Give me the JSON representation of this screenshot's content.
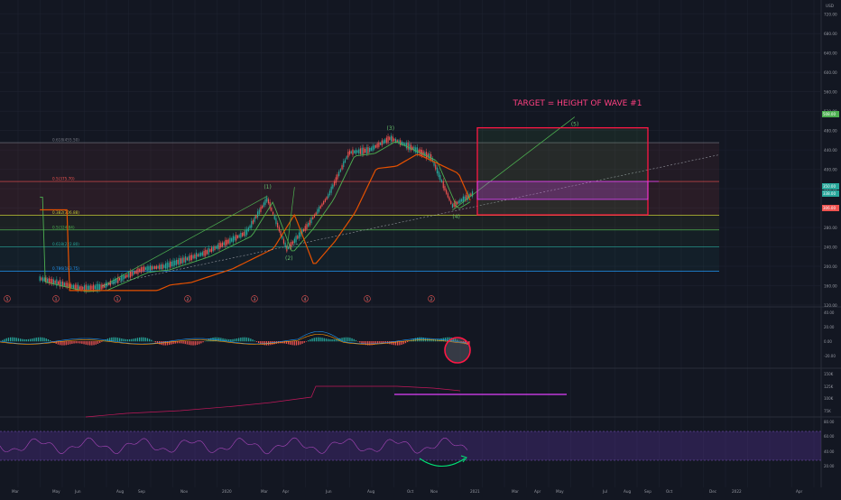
{
  "chart": {
    "annotation_title": "TARGET = HEIGHT OF WAVE #1",
    "colors": {
      "background": "#131722",
      "grid": "#1e2230",
      "price_up": "#26a69a",
      "price_down": "#ef5350",
      "ma_fast": "#4caf50",
      "ma_slow": "#e65100",
      "fib_red": "#ef5350",
      "fib_green": "#4caf50",
      "fib_blue": "#2196f3",
      "target_box": "#ff1744",
      "magenta": "#e040fb",
      "rsi_band": "#6a1b9a",
      "wave_label": "#66bb6a"
    },
    "price_axis": {
      "ticks": [
        "720.00",
        "680.00",
        "640.00",
        "600.00",
        "560.00",
        "520.00",
        "480.00",
        "440.00",
        "400.00",
        "360.00",
        "320.00",
        "280.00",
        "240.00",
        "200.00",
        "160.00",
        "120.00"
      ],
      "top_label": "USD",
      "tags": [
        {
          "label": "508.00",
          "color": "#4caf50"
        },
        {
          "label": "350.00",
          "color": "#26a69a"
        },
        {
          "label": "338.00",
          "color": "#26a69a"
        },
        {
          "label": "306.00",
          "color": "#ef5350"
        }
      ]
    },
    "macd_axis": {
      "ticks": [
        "40.00",
        "20.00",
        "0.00",
        "-20.00"
      ]
    },
    "volume_axis": {
      "ticks": [
        "150K",
        "125K",
        "100K",
        "75K"
      ]
    },
    "rsi_axis": {
      "ticks": [
        "80.00",
        "60.00",
        "40.00",
        "20.00"
      ]
    },
    "time_axis": [
      "Mar",
      "May",
      "Jun",
      "Aug",
      "Sep",
      "Nov",
      "2020",
      "Mar",
      "Apr",
      "Jun",
      "Aug",
      "Oct",
      "Nov",
      "2021",
      "Mar",
      "Apr",
      "May",
      "Jul",
      "Aug",
      "Sep",
      "Oct",
      "Dec",
      "2022",
      "Apr"
    ],
    "fib_levels": [
      {
        "label": "0.618(455.50)",
        "color": "#787b86"
      },
      {
        "label": "0.5(375.70)",
        "color": "#ef5350"
      },
      {
        "label": "0.382(306.88)",
        "color": "#c0ca33"
      },
      {
        "label": "0.5(324.84)",
        "color": "#4caf50"
      },
      {
        "label": "0.618(222.80)",
        "color": "#26a69a"
      },
      {
        "label": "0.786(183.75)",
        "color": "#2196f3"
      }
    ],
    "wave_labels": [
      "(1)",
      "(2)",
      "(3)",
      "(4)",
      "(5)"
    ],
    "cycle_markers": [
      "5",
      "1",
      "1",
      "2",
      "3",
      "4",
      "5",
      "2"
    ]
  },
  "chart_data": {
    "type": "line",
    "title": "",
    "annotation": "TARGET = HEIGHT OF WAVE #1",
    "ylabel": "USD",
    "ylim": [
      120,
      740
    ],
    "price_series": [
      {
        "x": "2019-03",
        "y": 175
      },
      {
        "x": "2019-05",
        "y": 155
      },
      {
        "x": "2019-06",
        "y": 158
      },
      {
        "x": "2019-08",
        "y": 195
      },
      {
        "x": "2019-09",
        "y": 200
      },
      {
        "x": "2019-11",
        "y": 228
      },
      {
        "x": "2020-01",
        "y": 270
      },
      {
        "x": "2020-02",
        "y": 340
      },
      {
        "x": "2020-03",
        "y": 235
      },
      {
        "x": "2020-04",
        "y": 285
      },
      {
        "x": "2020-05",
        "y": 345
      },
      {
        "x": "2020-06",
        "y": 435
      },
      {
        "x": "2020-07",
        "y": 440
      },
      {
        "x": "2020-08",
        "y": 465
      },
      {
        "x": "2020-09",
        "y": 445
      },
      {
        "x": "2020-10",
        "y": 425
      },
      {
        "x": "2020-11",
        "y": 325
      },
      {
        "x": "2020-12",
        "y": 350
      }
    ],
    "elliott_waves": [
      {
        "label": "(1)",
        "y": 345
      },
      {
        "label": "(2)",
        "y": 235
      },
      {
        "label": "(3)",
        "y": 470
      },
      {
        "label": "(4)",
        "y": 325
      },
      {
        "label": "(5)",
        "y": 508
      }
    ],
    "target_box_range": [
      306,
      508
    ],
    "series": [
      {
        "name": "MACD",
        "ylim": [
          -30,
          50
        ]
      },
      {
        "name": "Volume",
        "ylim": [
          60,
          160
        ]
      },
      {
        "name": "RSI",
        "ylim": [
          0,
          90
        ]
      }
    ]
  }
}
